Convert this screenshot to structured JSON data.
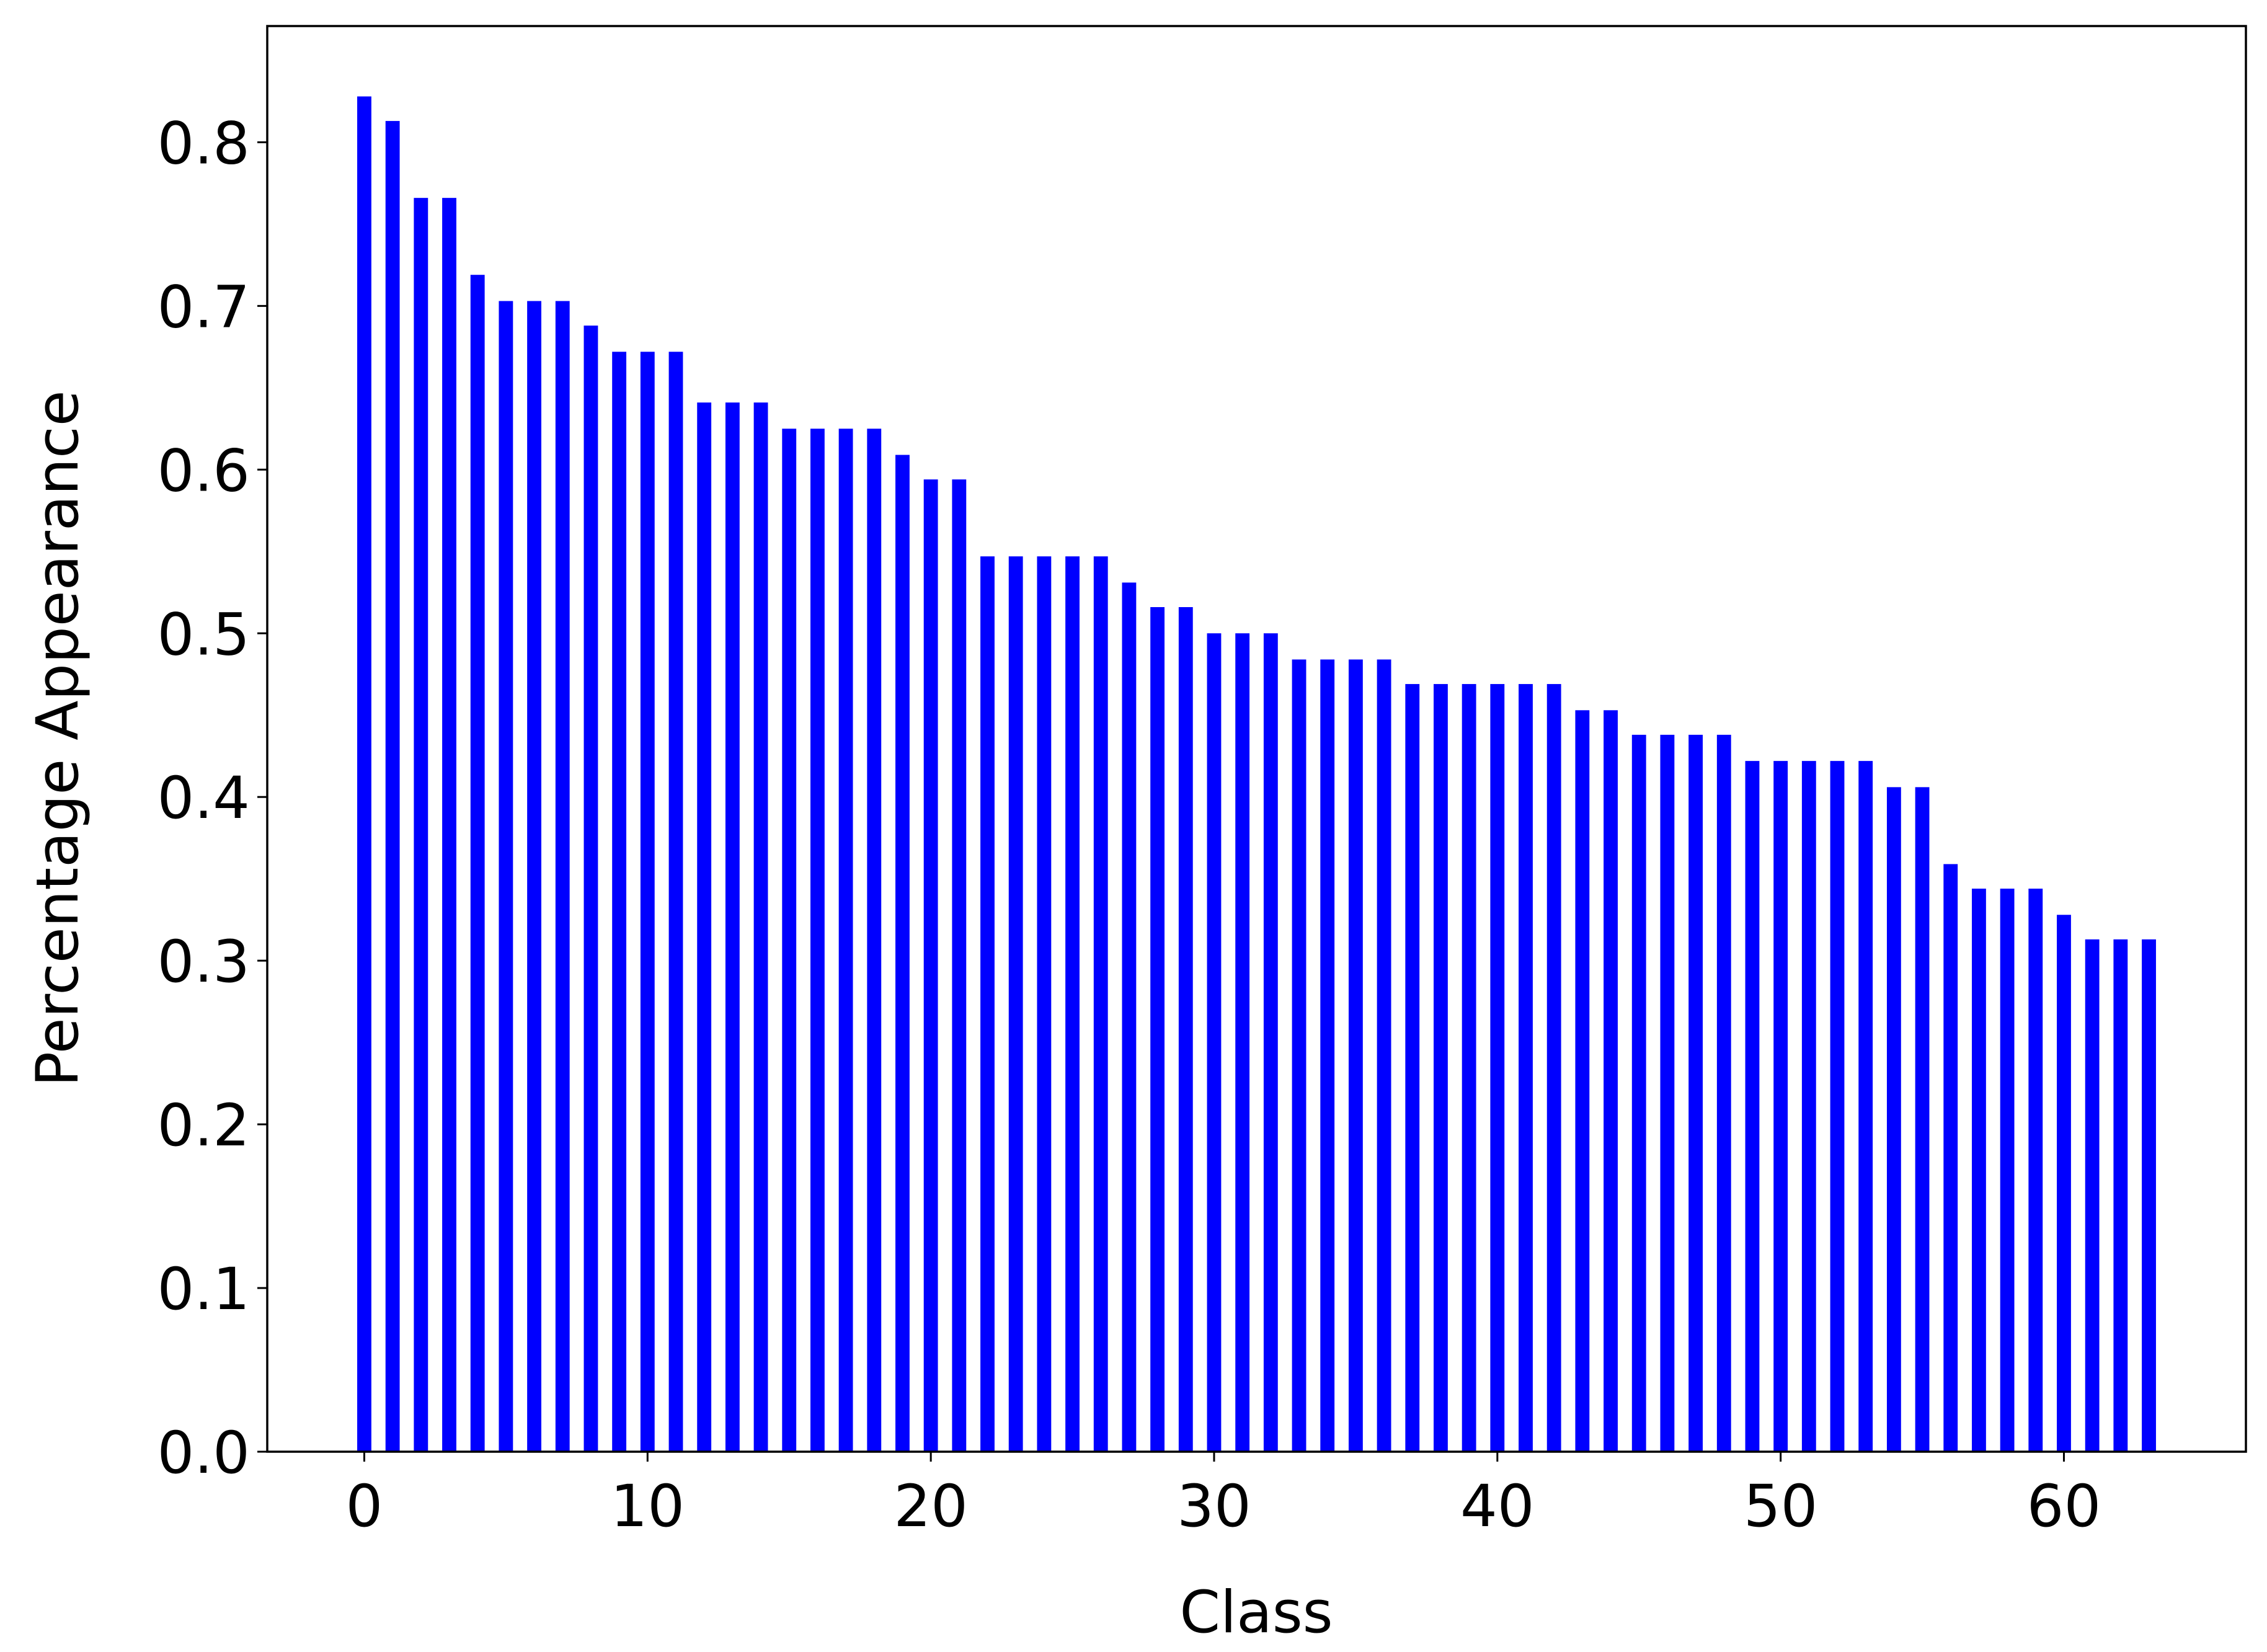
{
  "chart_data": {
    "type": "bar",
    "xlabel": "Class",
    "ylabel": "Percentage Appearance",
    "x": [
      0,
      1,
      2,
      3,
      4,
      5,
      6,
      7,
      8,
      9,
      10,
      11,
      12,
      13,
      14,
      15,
      16,
      17,
      18,
      19,
      20,
      21,
      22,
      23,
      24,
      25,
      26,
      27,
      28,
      29,
      30,
      31,
      32,
      33,
      34,
      35,
      36,
      37,
      38,
      39,
      40,
      41,
      42,
      43,
      44,
      45,
      46,
      47,
      48,
      49,
      50,
      51,
      52,
      53,
      54,
      55,
      56,
      57,
      58,
      59,
      60,
      61,
      62,
      63
    ],
    "values": [
      0.828,
      0.813,
      0.766,
      0.766,
      0.719,
      0.703,
      0.703,
      0.703,
      0.688,
      0.672,
      0.672,
      0.672,
      0.641,
      0.641,
      0.641,
      0.625,
      0.625,
      0.625,
      0.625,
      0.609,
      0.594,
      0.594,
      0.547,
      0.547,
      0.547,
      0.547,
      0.547,
      0.531,
      0.516,
      0.516,
      0.5,
      0.5,
      0.5,
      0.484,
      0.484,
      0.484,
      0.484,
      0.469,
      0.469,
      0.469,
      0.469,
      0.469,
      0.469,
      0.453,
      0.453,
      0.438,
      0.438,
      0.438,
      0.438,
      0.422,
      0.422,
      0.422,
      0.422,
      0.422,
      0.406,
      0.406,
      0.359,
      0.344,
      0.344,
      0.344,
      0.328,
      0.313,
      0.313,
      0.313
    ],
    "color": "#0000ff",
    "xlim": [
      -3.425,
      66.425
    ],
    "xticks": [
      0,
      10,
      20,
      30,
      40,
      50,
      60
    ],
    "ylim": [
      0,
      0.871
    ],
    "yticks": [
      {
        "value": 0,
        "label": "0.0"
      },
      0.1,
      0.2,
      0.3,
      0.4,
      0.5,
      0.6,
      0.7,
      0.8
    ],
    "grid": false
  }
}
